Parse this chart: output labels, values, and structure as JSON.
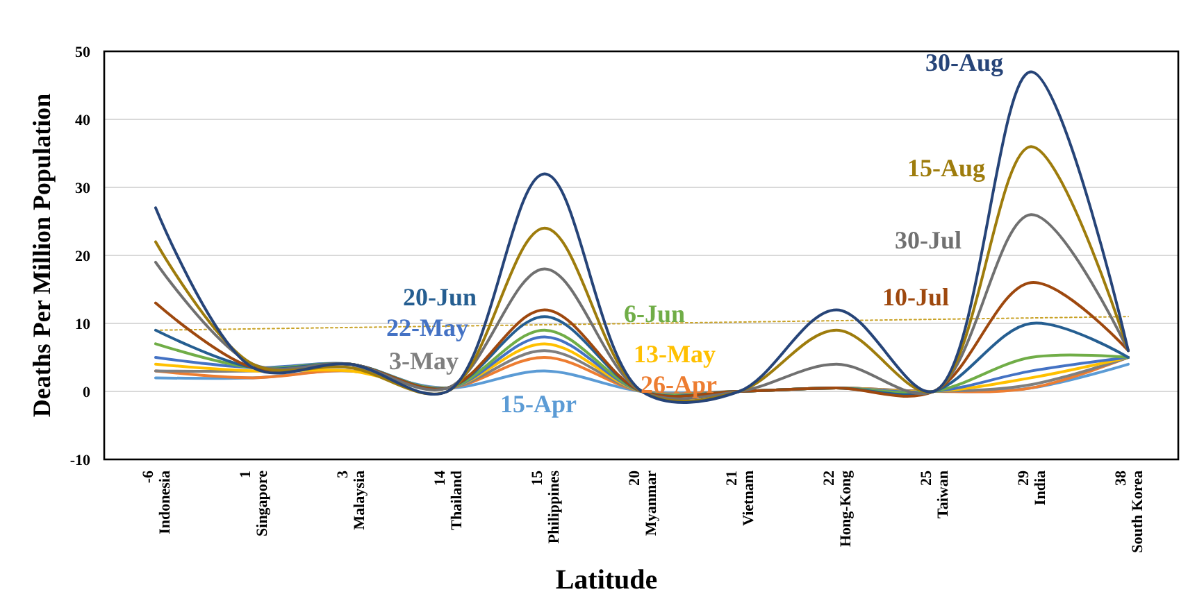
{
  "chart_data": {
    "type": "line",
    "xlabel": "Latitude",
    "ylabel": "Deaths Per Million Population",
    "categories": [
      "-6 Indonesia",
      "1 Singapore",
      "3 Malaysia",
      "14 Thailand",
      "15 Philippines",
      "20 Myanmar",
      "21 Vietnam",
      "22 Hong-Kong",
      "25 Taiwan",
      "29 India",
      "38 South Korea"
    ],
    "ylim": [
      -10,
      50
    ],
    "yticks": [
      -10,
      0,
      10,
      20,
      30,
      40,
      50
    ],
    "grid": "y",
    "legend": false,
    "marker": "none",
    "line_style": "solid",
    "series": [
      {
        "type": "line",
        "color": "#c9a227",
        "line_style": "dotted",
        "values": [
          9,
          9.2,
          9.4,
          9.6,
          9.8,
          10,
          10.2,
          10.4,
          10.6,
          10.8,
          11
        ]
      },
      {
        "name": "15-Apr",
        "color": "#5b9bd5",
        "values": [
          2,
          2,
          3,
          0.5,
          3,
          0,
          0,
          0.5,
          0,
          0.5,
          4
        ]
      },
      {
        "name": "26-Apr",
        "color": "#ed7d31",
        "values": [
          3,
          2,
          3,
          0.5,
          5,
          0,
          0,
          0.5,
          0,
          0.5,
          5
        ]
      },
      {
        "name": "3-May",
        "color": "#7f7f7f",
        "values": [
          3,
          3,
          3.5,
          0.5,
          6,
          0,
          0,
          0.5,
          0,
          1,
          5
        ]
      },
      {
        "name": "13-May",
        "color": "#ffc000",
        "values": [
          4,
          3,
          3,
          0.5,
          7,
          0,
          0,
          0.5,
          0,
          2,
          5
        ]
      },
      {
        "name": "22-May",
        "color": "#4472c4",
        "values": [
          5,
          3.5,
          4,
          0.5,
          8,
          0,
          0,
          0.5,
          0,
          3,
          5
        ]
      },
      {
        "name": "6-Jun",
        "color": "#70ad47",
        "values": [
          7,
          3.5,
          4,
          0.5,
          9,
          0,
          0,
          0.5,
          0,
          5,
          5
        ]
      },
      {
        "name": "20-Jun",
        "color": "#255e91",
        "values": [
          9,
          3.5,
          4,
          0.5,
          11,
          0,
          0,
          0.5,
          0,
          10,
          5
        ]
      },
      {
        "name": "10-Jul",
        "color": "#9e480e",
        "values": [
          13,
          3.5,
          4,
          0.5,
          12,
          0,
          0,
          0.5,
          0,
          16,
          6
        ]
      },
      {
        "name": "30-Jul",
        "color": "#707070",
        "values": [
          19,
          4,
          4,
          0.5,
          18,
          0,
          0,
          4,
          0,
          26,
          6
        ]
      },
      {
        "name": "15-Aug",
        "color": "#9e7c0c",
        "values": [
          22,
          4,
          3.5,
          0,
          24,
          0,
          0,
          9,
          0,
          36,
          6
        ]
      },
      {
        "name": "30-Aug",
        "color": "#264478",
        "values": [
          27,
          3.5,
          4,
          0,
          32,
          0,
          0,
          12,
          0,
          47,
          6
        ]
      }
    ]
  }
}
